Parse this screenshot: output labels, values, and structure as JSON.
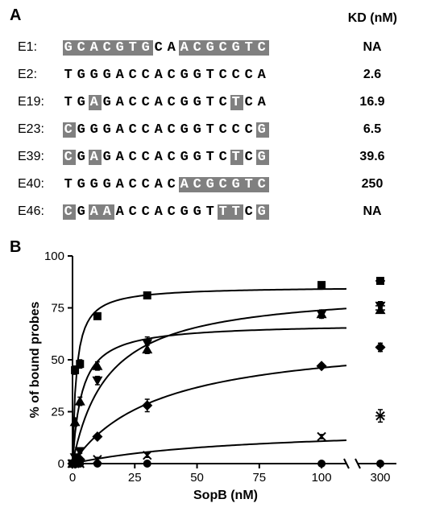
{
  "panelA": {
    "label": "A",
    "kd_header": "KD (nM)",
    "rows": [
      {
        "name": "E1:",
        "seq": "GCACGTGCAACGCGTC",
        "hl": [
          0,
          1,
          2,
          3,
          4,
          5,
          6,
          9,
          10,
          11,
          12,
          13,
          14,
          15
        ],
        "kd": "NA"
      },
      {
        "name": "E2:",
        "seq": "TGGGACCACGGTCCCA",
        "hl": [],
        "kd": "2.6"
      },
      {
        "name": "E19:",
        "seq": "TGAGACCACGGTCTCA",
        "hl": [
          2,
          13
        ],
        "kd": "16.9"
      },
      {
        "name": "E23:",
        "seq": "CGGGACCACGGTCCCG",
        "hl": [
          0,
          15
        ],
        "kd": "6.5"
      },
      {
        "name": "E39:",
        "seq": "CGAGACCACGGTCTCG",
        "hl": [
          0,
          2,
          13,
          15
        ],
        "kd": "39.6"
      },
      {
        "name": "E40:",
        "seq": "TGGGACCACACGCGTC",
        "hl": [
          9,
          10,
          11,
          12,
          13,
          14,
          15
        ],
        "kd": "250"
      },
      {
        "name": "E46:",
        "seq": "CGAAACCACGGTTTCG",
        "hl": [
          0,
          2,
          3,
          12,
          13,
          15
        ],
        "kd": "NA"
      }
    ]
  },
  "panelB": {
    "label": "B",
    "ylabel": "% of bound probes",
    "xlabel": "SopB (nM)",
    "ylim": [
      0,
      100
    ],
    "xlim_main": [
      0,
      110
    ],
    "ytick_step": 25,
    "xticks": [
      0,
      25,
      50,
      75,
      100
    ],
    "break_label": "300",
    "font_size_axis": 15,
    "font_size_label": 16,
    "line_color": "#000000",
    "marker_fill": "#000000",
    "background": "#ffffff",
    "series": [
      {
        "marker": "square",
        "x": [
          0,
          1,
          3,
          10,
          30,
          100
        ],
        "y": [
          0,
          45,
          48,
          71,
          81,
          86
        ],
        "err": [
          0,
          2,
          2,
          1,
          1,
          1
        ],
        "extra_x": 300,
        "extra_y": 88,
        "extra_err": 1
      },
      {
        "marker": "tri-down",
        "x": [
          0,
          1,
          3,
          10,
          30,
          100
        ],
        "y": [
          0,
          3,
          6,
          40,
          58,
          72
        ],
        "err": [
          0,
          1,
          1,
          2,
          3,
          2
        ],
        "extra_x": 300,
        "extra_y": 76,
        "extra_err": 2
      },
      {
        "marker": "tri-up",
        "x": [
          0,
          1,
          3,
          10,
          30,
          100
        ],
        "y": [
          0,
          20,
          30,
          47,
          55,
          72
        ],
        "err": [
          0,
          2,
          2,
          2,
          2,
          1
        ],
        "extra_x": 300,
        "extra_y": 74,
        "extra_err": 1
      },
      {
        "marker": "diamond",
        "x": [
          0,
          1,
          3,
          10,
          30,
          100
        ],
        "y": [
          0,
          0,
          2,
          13,
          28,
          47
        ],
        "err": [
          0,
          0,
          1,
          1,
          3,
          1
        ],
        "extra_x": 300,
        "extra_y": 56,
        "extra_err": 2
      },
      {
        "marker": "cross",
        "x": [
          0,
          1,
          3,
          10,
          30,
          100
        ],
        "y": [
          0,
          0,
          0,
          2,
          4,
          13
        ],
        "err": [
          0,
          0,
          0,
          1,
          1,
          1
        ],
        "extra_x": 300,
        "extra_y": 23,
        "extra_err": 3
      },
      {
        "marker": "circle",
        "x": [
          0,
          1,
          3,
          10,
          30,
          100
        ],
        "y": [
          0,
          0,
          0,
          0,
          0,
          0
        ],
        "err": [
          0,
          0,
          0,
          0,
          0,
          0
        ],
        "extra_x": 300,
        "extra_y": 0,
        "extra_err": 0
      }
    ]
  }
}
